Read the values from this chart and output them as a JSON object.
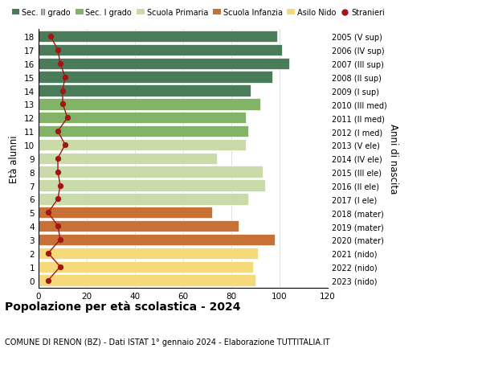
{
  "ages": [
    18,
    17,
    16,
    15,
    14,
    13,
    12,
    11,
    10,
    9,
    8,
    7,
    6,
    5,
    4,
    3,
    2,
    1,
    0
  ],
  "bar_values": [
    99,
    101,
    104,
    97,
    88,
    92,
    86,
    87,
    86,
    74,
    93,
    94,
    87,
    72,
    83,
    98,
    91,
    89,
    90
  ],
  "stranieri": [
    5,
    8,
    9,
    11,
    10,
    10,
    12,
    8,
    11,
    8,
    8,
    9,
    8,
    4,
    8,
    9,
    4,
    9,
    4
  ],
  "right_labels": [
    "2005 (V sup)",
    "2006 (IV sup)",
    "2007 (III sup)",
    "2008 (II sup)",
    "2009 (I sup)",
    "2010 (III med)",
    "2011 (II med)",
    "2012 (I med)",
    "2013 (V ele)",
    "2014 (IV ele)",
    "2015 (III ele)",
    "2016 (II ele)",
    "2017 (I ele)",
    "2018 (mater)",
    "2019 (mater)",
    "2020 (mater)",
    "2021 (nido)",
    "2022 (nido)",
    "2023 (nido)"
  ],
  "bar_colors": {
    "sec2": "#4a7c59",
    "sec1": "#82b366",
    "primaria": "#c8dba8",
    "infanzia": "#c87137",
    "nido": "#f5d97a"
  },
  "age_categories": {
    "sec2": [
      14,
      15,
      16,
      17,
      18
    ],
    "sec1": [
      11,
      12,
      13
    ],
    "primaria": [
      6,
      7,
      8,
      9,
      10
    ],
    "infanzia": [
      3,
      4,
      5
    ],
    "nido": [
      0,
      1,
      2
    ]
  },
  "stranieri_color": "#a31515",
  "legend_labels": [
    "Sec. II grado",
    "Sec. I grado",
    "Scuola Primaria",
    "Scuola Infanzia",
    "Asilo Nido",
    "Stranieri"
  ],
  "ylabel": "Età alunni",
  "right_ylabel": "Anni di nascita",
  "title": "Popolazione per età scolastica - 2024",
  "subtitle": "COMUNE DI RENON (BZ) - Dati ISTAT 1° gennaio 2024 - Elaborazione TUTTITALIA.IT",
  "xlim": [
    0,
    120
  ],
  "xticks": [
    0,
    20,
    40,
    60,
    80,
    100,
    120
  ],
  "background_color": "#ffffff",
  "grid_color": "#dddddd"
}
